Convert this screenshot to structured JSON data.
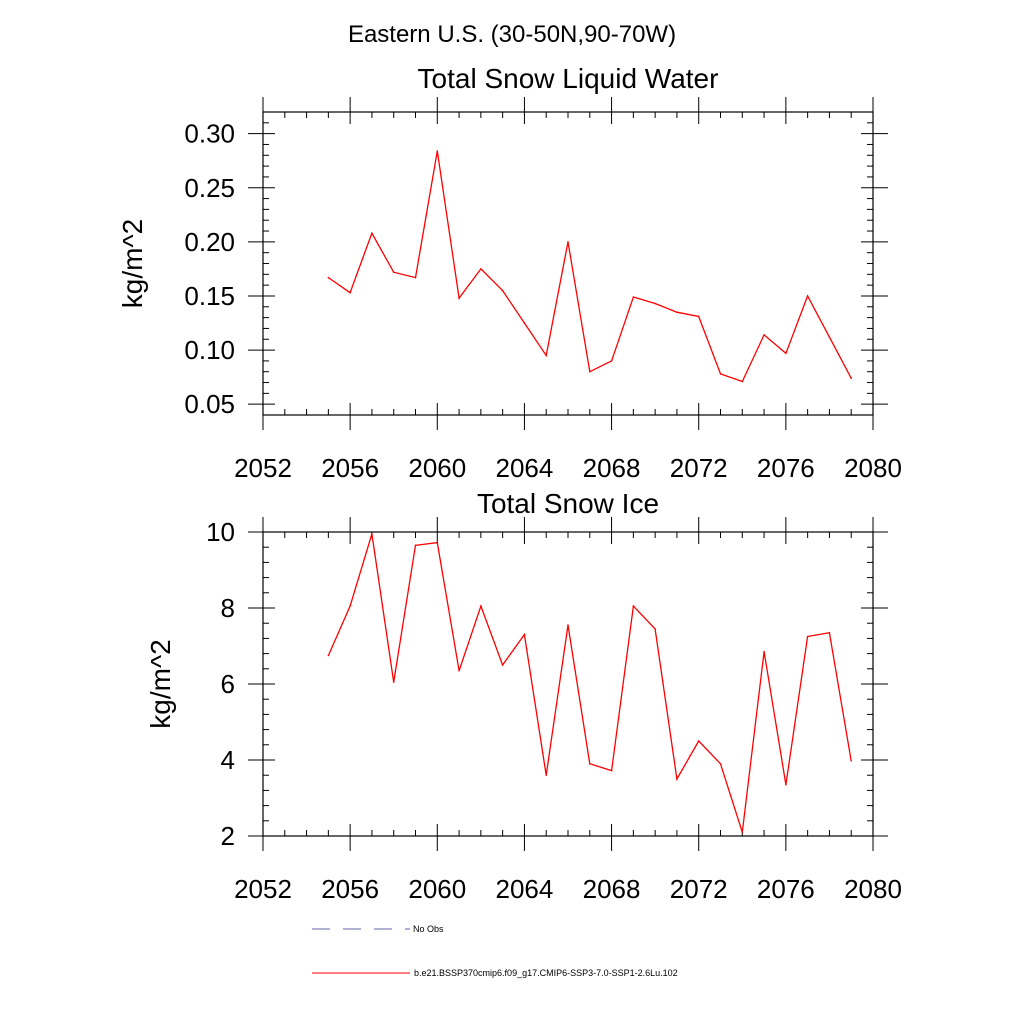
{
  "figure": {
    "title": "Eastern U.S. (30-50N,90-70W)"
  },
  "chart_data": [
    {
      "type": "line",
      "title": "Total Snow Liquid Water",
      "xlabel": "",
      "ylabel": "kg/m^2",
      "xlim": [
        2052,
        2080
      ],
      "ylim": [
        0.04,
        0.32
      ],
      "xticks": [
        2052,
        2056,
        2060,
        2064,
        2068,
        2072,
        2076,
        2080
      ],
      "yticks": [
        0.05,
        0.1,
        0.15,
        0.2,
        0.25,
        0.3
      ],
      "ytick_labels": [
        "0.05",
        "0.10",
        "0.15",
        "0.20",
        "0.25",
        "0.30"
      ],
      "x_minor_step": 1,
      "y_minor_step": 0.01,
      "grid": false,
      "series": [
        {
          "name": "b.e21.BSSP370cmip6.f09_g17.CMIP6-SSP3-7.0-SSP1-2.6Lu.102",
          "color": "#ff0000",
          "x": [
            2055,
            2056,
            2057,
            2058,
            2059,
            2060,
            2061,
            2062,
            2063,
            2064,
            2065,
            2066,
            2067,
            2068,
            2069,
            2070,
            2071,
            2072,
            2073,
            2074,
            2075,
            2076,
            2077,
            2078,
            2079
          ],
          "y": [
            0.167,
            0.153,
            0.208,
            0.172,
            0.167,
            0.284,
            0.148,
            0.175,
            0.155,
            0.125,
            0.095,
            0.2,
            0.08,
            0.09,
            0.149,
            0.143,
            0.135,
            0.131,
            0.078,
            0.071,
            0.114,
            0.097,
            0.15,
            0.112,
            0.074
          ]
        }
      ]
    },
    {
      "type": "line",
      "title": "Total Snow Ice",
      "xlabel": "",
      "ylabel": "kg/m^2",
      "xlim": [
        2052,
        2080
      ],
      "ylim": [
        2,
        10
      ],
      "xticks": [
        2052,
        2056,
        2060,
        2064,
        2068,
        2072,
        2076,
        2080
      ],
      "yticks": [
        2,
        4,
        6,
        8,
        10
      ],
      "ytick_labels": [
        "2",
        "4",
        "6",
        "8",
        "10"
      ],
      "x_minor_step": 1,
      "y_minor_step": 0.4,
      "grid": false,
      "series": [
        {
          "name": "b.e21.BSSP370cmip6.f09_g17.CMIP6-SSP3-7.0-SSP1-2.6Lu.102",
          "color": "#ff0000",
          "x": [
            2055,
            2056,
            2057,
            2058,
            2059,
            2060,
            2061,
            2062,
            2063,
            2064,
            2065,
            2066,
            2067,
            2068,
            2069,
            2070,
            2071,
            2072,
            2073,
            2074,
            2075,
            2076,
            2077,
            2078,
            2079
          ],
          "y": [
            6.75,
            8.05,
            9.95,
            6.05,
            9.65,
            9.72,
            6.35,
            8.05,
            6.5,
            7.3,
            3.6,
            7.55,
            3.9,
            3.72,
            8.05,
            7.45,
            3.5,
            4.5,
            3.9,
            2.1,
            6.85,
            3.35,
            7.25,
            7.35,
            3.98
          ]
        }
      ]
    }
  ],
  "legend": {
    "placement": "bottom",
    "items": [
      {
        "label": "No Obs",
        "color": "#6666aa",
        "style": "dashed"
      },
      {
        "label": "b.e21.BSSP370cmip6.f09_g17.CMIP6-SSP3-7.0-SSP1-2.6Lu.102",
        "color": "#ff0000",
        "style": "solid"
      }
    ]
  }
}
